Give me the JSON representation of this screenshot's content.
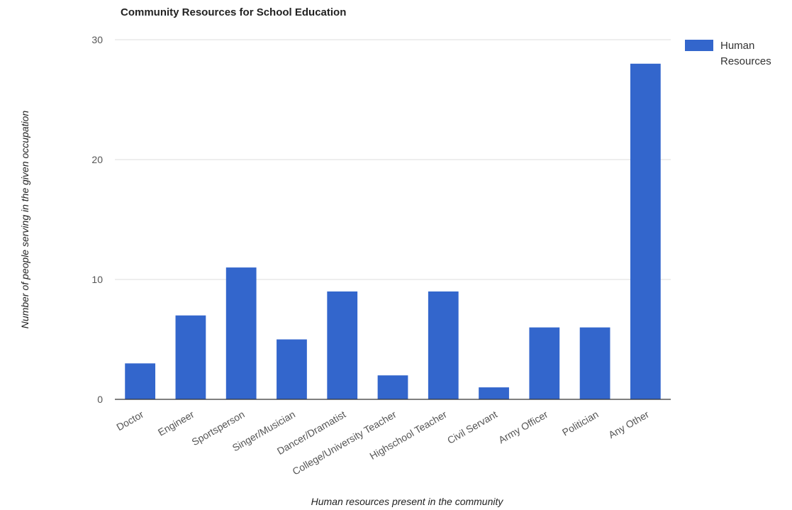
{
  "chart_data": {
    "type": "bar",
    "title": "Community Resources for School Education",
    "xlabel": "Human resources present in the community",
    "ylabel": "Number of people serving in the given occupation",
    "categories": [
      "Doctor",
      "Engineer",
      "Sportsperson",
      "Singer/Musician",
      "Dancer/Dramatist",
      "College/University Teacher",
      "Highschool Teacher",
      "Civil Servant",
      "Army Officer",
      "Politician",
      "Any Other"
    ],
    "series": [
      {
        "name": "Human Resources",
        "values": [
          3,
          7,
          11,
          5,
          9,
          2,
          9,
          1,
          6,
          6,
          28
        ],
        "color": "#3366cc"
      }
    ],
    "ylim": [
      0,
      30
    ],
    "yticks": [
      0,
      10,
      20,
      30
    ],
    "grid": true,
    "legend": "right"
  }
}
